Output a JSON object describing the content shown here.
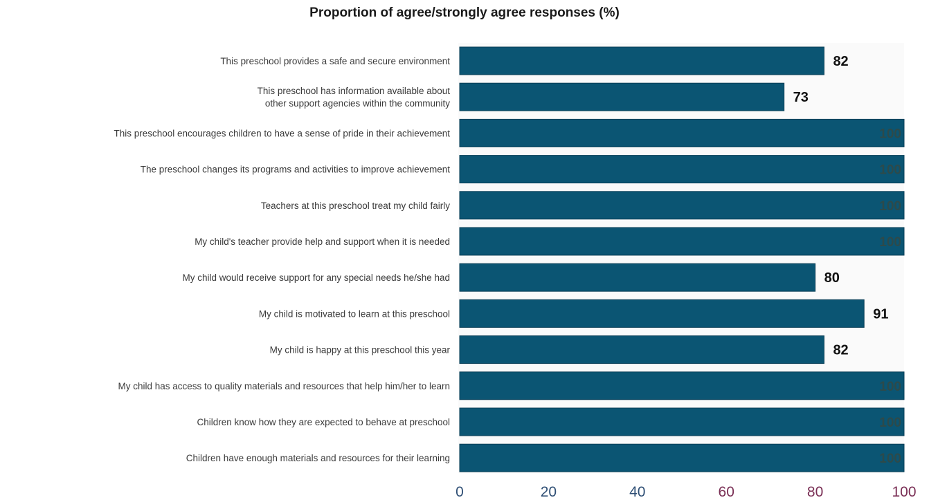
{
  "chart_data": {
    "type": "bar",
    "orientation": "horizontal",
    "title": "Proportion of agree/strongly agree responses (%)",
    "categories": [
      [
        "This preschool provides a safe and secure environment"
      ],
      [
        "This preschool has information available about",
        "other support agencies within the community"
      ],
      [
        "This preschool encourages children to have a sense of pride in their achievement"
      ],
      [
        "The preschool changes its programs and activities to improve achievement"
      ],
      [
        "Teachers at this preschool treat my child fairly"
      ],
      [
        "My child's teacher provide help and support when it is needed"
      ],
      [
        "My child would receive support for any special needs he/she had"
      ],
      [
        "My child is motivated to learn at this preschool"
      ],
      [
        "My child is happy at this preschool this year"
      ],
      [
        "My child has access to quality materials and resources that help him/her to learn"
      ],
      [
        "Children know how they are expected to behave at preschool"
      ],
      [
        "Children have enough materials and resources for their learning"
      ]
    ],
    "values": [
      82,
      73,
      100,
      100,
      100,
      100,
      80,
      91,
      82,
      100,
      100,
      100
    ],
    "xlim": [
      0,
      100
    ],
    "xticks": [
      "0",
      "20",
      "40",
      "60",
      "80",
      "100"
    ],
    "grid": false,
    "colors": {
      "bar": "#0b5573",
      "bar_edge": "#0a3f57",
      "tick_colors": [
        "#2f4f75",
        "#2f4f75",
        "#2f4f75",
        "#7a2f55",
        "#7a2f55",
        "#7a2f55"
      ]
    }
  }
}
